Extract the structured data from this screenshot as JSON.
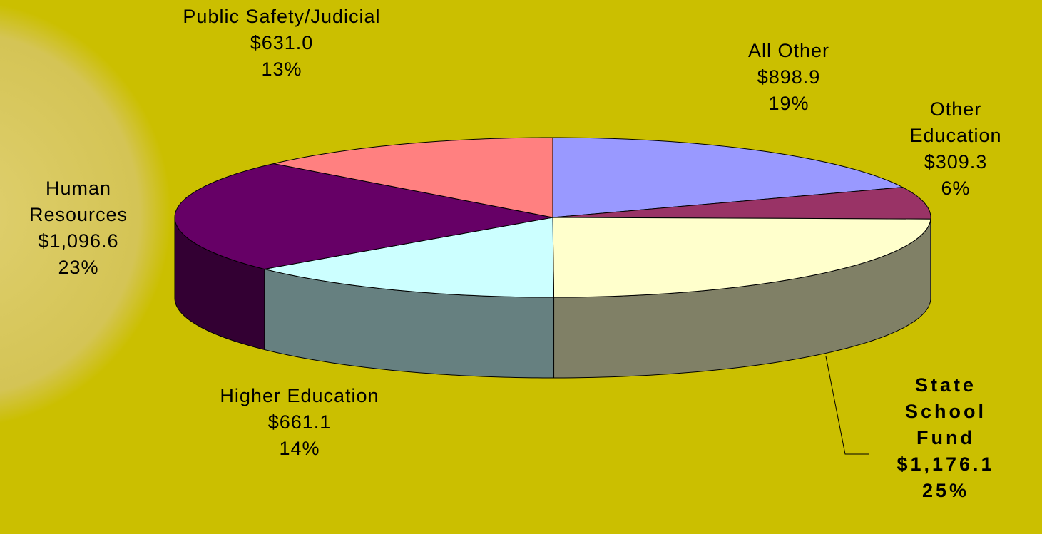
{
  "chart_data": {
    "type": "pie",
    "categories": [
      "All Other",
      "Other Education",
      "State School Fund",
      "Higher Education",
      "Human Resources",
      "Public Safety/Judicial"
    ],
    "values": [
      898.9,
      309.3,
      1176.1,
      661.1,
      1096.6,
      631.0
    ],
    "value_labels": [
      "$898.9",
      "$309.3",
      "$1,176.1",
      "$661.1",
      "$1,096.6",
      "$631.0"
    ],
    "percents": [
      19,
      6,
      25,
      14,
      23,
      13
    ],
    "percent_labels": [
      "19%",
      "6%",
      "25%",
      "14%",
      "23%",
      "13%"
    ],
    "colors": [
      "#9999ff",
      "#993366",
      "#ffffcc",
      "#ccffff",
      "#660066",
      "#ff8080"
    ]
  }
}
